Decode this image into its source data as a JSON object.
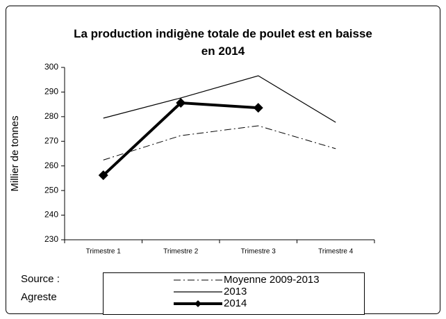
{
  "chart_data": {
    "type": "line",
    "title": "La production indigène totale de poulet est en baisse en 2014",
    "y_label": "Millier de tonnes",
    "source": [
      "Source :",
      "Agreste"
    ],
    "categories": [
      "Trimestre 1",
      "Trimestre 2",
      "Trimestre 3",
      "Trimestre 4"
    ],
    "series": [
      {
        "name": "Moyenne 2009-2013",
        "color": "#000000",
        "style": "dashdot",
        "values": [
          262.4,
          272.3,
          276.3,
          267.0
        ]
      },
      {
        "name": "2013",
        "color": "#000000",
        "style": "solid",
        "values": [
          279.4,
          287.6,
          296.6,
          277.7
        ]
      },
      {
        "name": "2014",
        "color": "#000000",
        "style": "bold-diamond",
        "values": [
          256.2,
          285.6,
          283.6,
          null
        ]
      }
    ],
    "ylim": [
      230,
      300
    ],
    "yticks": [
      230,
      240,
      250,
      260,
      270,
      280,
      290,
      300
    ],
    "grid": false
  }
}
